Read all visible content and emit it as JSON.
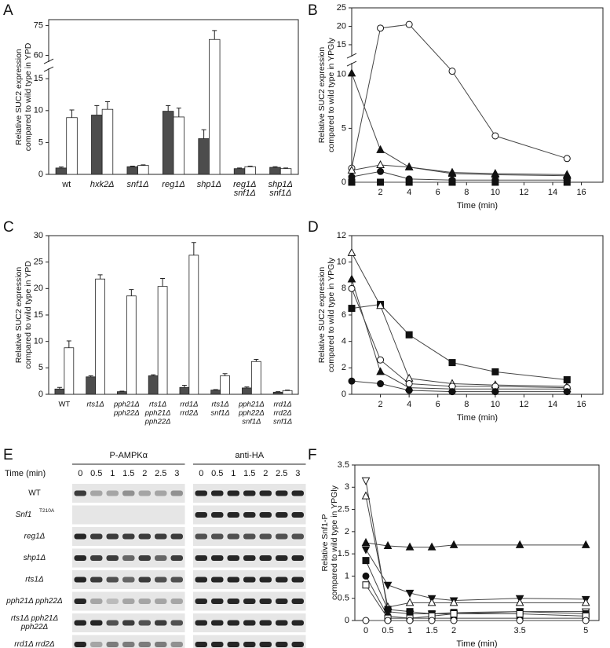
{
  "chart_data": [
    {
      "panel": "A",
      "type": "bar",
      "ylabel": [
        "Relative SUC2 expression",
        "compared to wild type in YPD"
      ],
      "categories": [
        [
          "wt"
        ],
        [
          "hxk2Δ"
        ],
        [
          "snf1Δ"
        ],
        [
          "reg1Δ"
        ],
        [
          "shp1Δ"
        ],
        [
          "reg1Δ",
          "snf1Δ"
        ],
        [
          "shp1Δ",
          "snf1Δ"
        ]
      ],
      "series": [
        {
          "color": "#4d4d4d",
          "values": [
            1,
            9.3,
            1.2,
            9.9,
            5.6,
            0.9,
            1.1
          ],
          "errors": [
            0.15,
            1.5,
            0.1,
            0.9,
            1.4,
            0.1,
            0.1
          ]
        },
        {
          "color": "#ffffff",
          "values": [
            8.9,
            10.2,
            1.4,
            9,
            68,
            1.2,
            0.9
          ],
          "errors": [
            1.2,
            1.2,
            0.1,
            1.4,
            4.5,
            0.1,
            0.1
          ]
        }
      ],
      "ylim": [
        0,
        78
      ],
      "yticks": [
        0,
        5,
        10,
        15,
        60,
        75
      ],
      "ybreak": [
        16.5,
        57
      ]
    },
    {
      "panel": "B",
      "type": "line",
      "ylabel": [
        "Relative SUC2 expression",
        "compared to wild type in YPGly"
      ],
      "xlabel": "Time (min)",
      "x": [
        0,
        2,
        4,
        7,
        10,
        15
      ],
      "series": [
        {
          "marker": "open-circle",
          "values": [
            1.3,
            19.5,
            20.5,
            10.3,
            4.3,
            2.2
          ]
        },
        {
          "marker": "open-triangle-up",
          "values": [
            1.1,
            1.6,
            1.4,
            0.9,
            0.8,
            0.7
          ]
        },
        {
          "marker": "filled-triangle-up",
          "values": [
            10.1,
            3,
            1.4,
            0.8,
            0.7,
            0.6
          ]
        },
        {
          "marker": "filled-circle",
          "values": [
            0.5,
            1,
            0.3,
            0.2,
            0.2,
            0.2
          ]
        },
        {
          "marker": "filled-square",
          "values": [
            0,
            0,
            0,
            0,
            0,
            0
          ]
        }
      ],
      "xlim": [
        0,
        17.5
      ],
      "xticks": [
        2,
        4,
        6,
        8,
        10,
        12,
        14,
        16
      ],
      "ylim": [
        0,
        25
      ],
      "yticks": [
        0,
        5,
        10,
        15,
        20,
        25
      ],
      "ybreak": [
        11,
        12
      ]
    },
    {
      "panel": "C",
      "type": "bar",
      "ylabel": [
        "Relative SUC2 expression",
        "compared to wild type in YPD"
      ],
      "categories": [
        [
          "WT"
        ],
        [
          "rts1Δ"
        ],
        [
          "pph21Δ",
          "pph22Δ"
        ],
        [
          "rts1Δ",
          "pph21Δ",
          "pph22Δ"
        ],
        [
          "rrd1Δ",
          "rrd2Δ"
        ],
        [
          "rts1Δ",
          "snf1Δ"
        ],
        [
          "pph21Δ",
          "pph22Δ",
          "snf1Δ"
        ],
        [
          "rrd1Δ",
          "rrd2Δ",
          "snf1Δ"
        ]
      ],
      "series": [
        {
          "color": "#4d4d4d",
          "values": [
            1,
            3.3,
            0.5,
            3.5,
            1.3,
            0.8,
            1.2,
            0.4
          ],
          "errors": [
            0.3,
            0.2,
            0.1,
            0.2,
            0.4,
            0.1,
            0.2,
            0.1
          ]
        },
        {
          "color": "#ffffff",
          "values": [
            8.8,
            21.8,
            18.6,
            20.4,
            26.3,
            3.5,
            6.2,
            0.7
          ],
          "errors": [
            1.3,
            0.8,
            1.2,
            1.5,
            2.4,
            0.4,
            0.4,
            0.1
          ]
        }
      ],
      "ylim": [
        0,
        30
      ],
      "yticks": [
        0,
        5,
        10,
        15,
        20,
        25,
        30
      ]
    },
    {
      "panel": "D",
      "type": "line",
      "ylabel": [
        "Relative SUC2 expression",
        "compared to wild type in YPGly"
      ],
      "xlabel": "Time (min)",
      "x": [
        0,
        2,
        4,
        7,
        10,
        15
      ],
      "series": [
        {
          "marker": "filled-square",
          "values": [
            6.5,
            6.8,
            4.5,
            2.4,
            1.7,
            1.1
          ]
        },
        {
          "marker": "open-triangle-up",
          "values": [
            10.7,
            6.7,
            1.2,
            0.8,
            0.7,
            0.6
          ]
        },
        {
          "marker": "filled-triangle-up",
          "values": [
            8.7,
            1.7,
            0.5,
            0.4,
            0.4,
            0.4
          ]
        },
        {
          "marker": "open-circle",
          "values": [
            8,
            2.6,
            0.8,
            0.6,
            0.6,
            0.5
          ]
        },
        {
          "marker": "filled-circle",
          "values": [
            1,
            0.8,
            0.3,
            0.2,
            0.2,
            0.2
          ]
        }
      ],
      "xlim": [
        0,
        17.5
      ],
      "xticks": [
        2,
        4,
        6,
        8,
        10,
        12,
        14,
        16
      ],
      "ylim": [
        0,
        12
      ],
      "yticks": [
        0,
        2,
        4,
        6,
        8,
        10,
        12
      ]
    },
    {
      "panel": "E",
      "type": "blot",
      "blots": [
        "P-AMPKα",
        "anti-HA"
      ],
      "time_label": "Time (min)",
      "times": [
        "0",
        "0.5",
        "1",
        "1.5",
        "2",
        "2.5",
        "3"
      ],
      "rows": [
        {
          "label": [
            "WT"
          ],
          "signal": [
            [
              0.8,
              0.3,
              0.3,
              0.4,
              0.3,
              0.3,
              0.4
            ],
            [
              0.9,
              0.9,
              0.9,
              0.9,
              0.9,
              0.9,
              0.9
            ]
          ]
        },
        {
          "label": [
            "Snf1"
          ],
          "sup": "T210A",
          "signal": [
            [
              0,
              0,
              0,
              0,
              0,
              0,
              0
            ],
            [
              0.9,
              0.9,
              0.9,
              0.9,
              0.9,
              0.9,
              0.9
            ]
          ]
        },
        {
          "label": [
            "reg1Δ"
          ],
          "signal": [
            [
              0.9,
              0.8,
              0.8,
              0.8,
              0.8,
              0.8,
              0.8
            ],
            [
              0.7,
              0.7,
              0.7,
              0.7,
              0.7,
              0.7,
              0.7
            ]
          ]
        },
        {
          "label": [
            "shp1Δ"
          ],
          "signal": [
            [
              0.9,
              0.8,
              0.8,
              0.6,
              0.8,
              0.6,
              0.8
            ],
            [
              0.9,
              0.9,
              0.9,
              0.9,
              0.9,
              0.9,
              0.9
            ]
          ]
        },
        {
          "label": [
            "rts1Δ"
          ],
          "signal": [
            [
              0.9,
              0.8,
              0.7,
              0.6,
              0.8,
              0.7,
              0.7
            ],
            [
              0.9,
              0.9,
              0.9,
              0.9,
              0.9,
              0.9,
              0.9
            ]
          ]
        },
        {
          "label": [
            "pph21Δ pph22Δ"
          ],
          "signal": [
            [
              0.9,
              0.3,
              0.2,
              0.3,
              0.3,
              0.3,
              0.3
            ],
            [
              0.9,
              0.9,
              0.9,
              0.9,
              0.9,
              0.9,
              0.9
            ]
          ]
        },
        {
          "label": [
            "rts1Δ pph21Δ",
            "pph22Δ"
          ],
          "signal": [
            [
              0.9,
              0.9,
              0.7,
              0.8,
              0.7,
              0.8,
              0.7
            ],
            [
              0.9,
              0.9,
              0.9,
              0.9,
              0.9,
              0.9,
              0.9
            ]
          ]
        },
        {
          "label": [
            "rrd1Δ rrd2Δ"
          ],
          "signal": [
            [
              0.9,
              0.3,
              0.5,
              0.5,
              0.5,
              0.5,
              0.4
            ],
            [
              0.9,
              0.9,
              0.9,
              0.9,
              0.9,
              0.9,
              0.9
            ]
          ]
        }
      ]
    },
    {
      "panel": "F",
      "type": "line",
      "ylabel": [
        "Relative Snf1-P",
        "compared to wild type in YPGly"
      ],
      "xlabel": "Time (min)",
      "x": [
        0,
        0.5,
        1,
        1.5,
        2,
        3.5,
        5
      ],
      "series": [
        {
          "marker": "filled-triangle-up",
          "values": [
            1.75,
            1.68,
            1.65,
            1.65,
            1.7,
            1.7,
            1.7
          ]
        },
        {
          "marker": "filled-triangle-down",
          "values": [
            1.6,
            0.8,
            0.62,
            0.5,
            0.45,
            0.5,
            0.48
          ]
        },
        {
          "marker": "open-triangle-down",
          "values": [
            3.15,
            0.2,
            0.15,
            0.15,
            0.15,
            0.2,
            0.2
          ]
        },
        {
          "marker": "open-triangle-up",
          "values": [
            2.8,
            0.3,
            0.4,
            0.4,
            0.4,
            0.4,
            0.4
          ]
        },
        {
          "marker": "filled-square",
          "values": [
            1.35,
            0.25,
            0.2,
            0.15,
            0.18,
            0.2,
            0.15
          ]
        },
        {
          "marker": "filled-circle",
          "values": [
            1,
            0.1,
            0.05,
            0.05,
            0.05,
            0.05,
            0.05
          ]
        },
        {
          "marker": "open-square",
          "values": [
            0.8,
            0.05,
            0.05,
            0.1,
            0.15,
            0.15,
            0.1
          ]
        },
        {
          "marker": "open-circle",
          "values": [
            0,
            0,
            0,
            0,
            0,
            0,
            0
          ]
        }
      ],
      "xlim": [
        -0.25,
        5.3
      ],
      "xticks": [
        0,
        0.5,
        1,
        1.5,
        2,
        3.5,
        5
      ],
      "ylim": [
        0,
        3.5
      ],
      "yticks": [
        0,
        0.5,
        1,
        1.5,
        2,
        2.5,
        3,
        3.5
      ]
    }
  ]
}
